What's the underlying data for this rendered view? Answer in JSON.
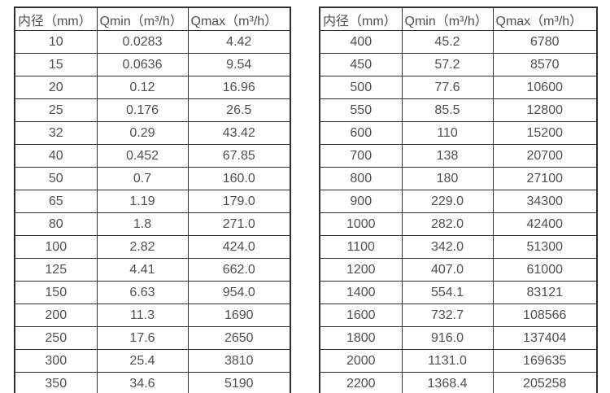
{
  "chart_data": [
    {
      "type": "table",
      "position": "left",
      "columns": [
        "内径（mm）",
        "Qmin（m³/h）",
        "Qmax（m³/h）"
      ],
      "rows": [
        [
          "10",
          "0.0283",
          "4.42"
        ],
        [
          "15",
          "0.0636",
          "9.54"
        ],
        [
          "20",
          "0.12",
          "16.96"
        ],
        [
          "25",
          "0.176",
          "26.5"
        ],
        [
          "32",
          "0.29",
          "43.42"
        ],
        [
          "40",
          "0.452",
          "67.85"
        ],
        [
          "50",
          "0.7",
          "160.0"
        ],
        [
          "65",
          "1.19",
          "179.0"
        ],
        [
          "80",
          "1.8",
          "271.0"
        ],
        [
          "100",
          "2.82",
          "424.0"
        ],
        [
          "125",
          "4.41",
          "662.0"
        ],
        [
          "150",
          "6.63",
          "954.0"
        ],
        [
          "200",
          "11.3",
          "1690"
        ],
        [
          "250",
          "17.6",
          "2650"
        ],
        [
          "300",
          "25.4",
          "3810"
        ],
        [
          "350",
          "34.6",
          "5190"
        ]
      ]
    },
    {
      "type": "table",
      "position": "right",
      "columns": [
        "内径（mm）",
        "Qmin（m³/h）",
        "Qmax（m³/h）"
      ],
      "rows": [
        [
          "400",
          "45.2",
          "6780"
        ],
        [
          "450",
          "57.2",
          "8570"
        ],
        [
          "500",
          "77.6",
          "10600"
        ],
        [
          "550",
          "85.5",
          "12800"
        ],
        [
          "600",
          "110",
          "15200"
        ],
        [
          "700",
          "138",
          "20700"
        ],
        [
          "800",
          "180",
          "27100"
        ],
        [
          "900",
          "229.0",
          "34300"
        ],
        [
          "1000",
          "282.0",
          "42400"
        ],
        [
          "1100",
          "342.0",
          "51300"
        ],
        [
          "1200",
          "407.0",
          "61000"
        ],
        [
          "1400",
          "554.1",
          "83121"
        ],
        [
          "1600",
          "732.7",
          "108566"
        ],
        [
          "1800",
          "916.0",
          "137404"
        ],
        [
          "2000",
          "1131.0",
          "169635"
        ],
        [
          "2200",
          "1368.4",
          "205258"
        ]
      ]
    }
  ],
  "colors": {
    "background": "#ffffff",
    "border": "#2f2f2f",
    "text": "#4f4f4f"
  }
}
